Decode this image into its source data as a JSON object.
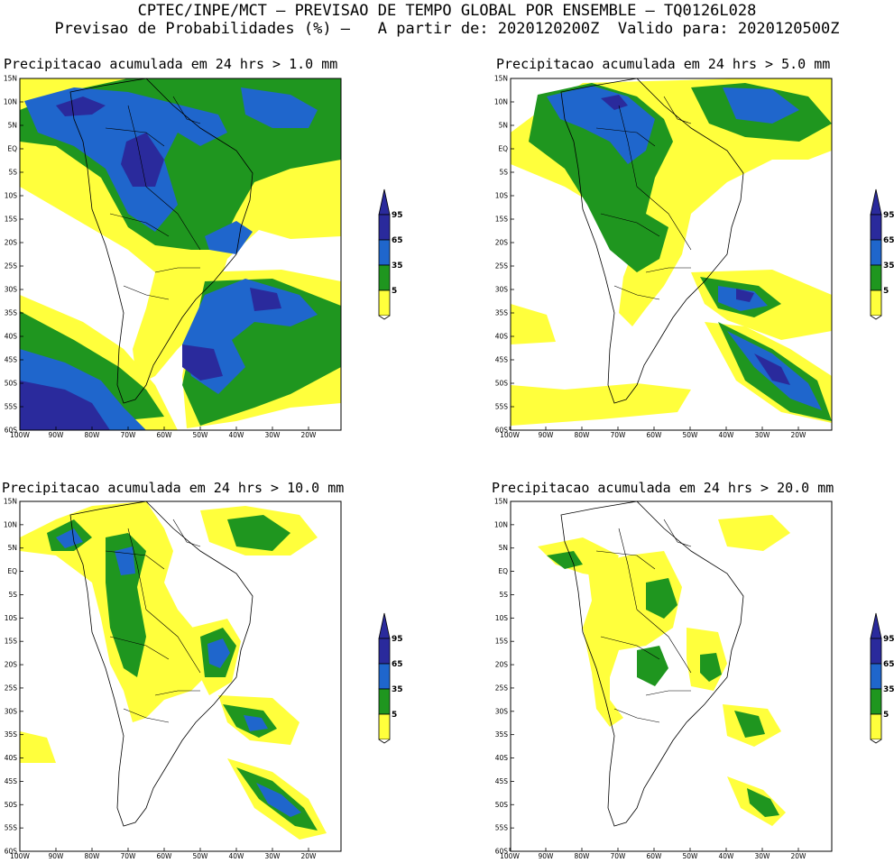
{
  "header": {
    "line1": "CPTEC/INPE/MCT – PREVISAO DE TEMPO GLOBAL POR ENSEMBLE – TQ0126L028",
    "line2": "Previsao de Probabilidades (%) –   A partir de: 2020120200Z  Valido para: 2020120500Z"
  },
  "panels": [
    {
      "title": "Precipitacao acumulada em 24 hrs > 1.0 mm",
      "threshold_mm": 1.0
    },
    {
      "title": "Precipitacao acumulada em 24 hrs > 5.0 mm",
      "threshold_mm": 5.0
    },
    {
      "title": "Precipitacao acumulada em 24 hrs > 10.0 mm",
      "threshold_mm": 10.0
    },
    {
      "title": "Precipitacao acumulada em 24 hrs > 20.0 mm",
      "threshold_mm": 20.0
    }
  ],
  "axes": {
    "lat_labels": [
      "15N",
      "10N",
      "5N",
      "EQ",
      "5S",
      "10S",
      "15S",
      "20S",
      "25S",
      "30S",
      "35S",
      "40S",
      "45S",
      "50S",
      "55S",
      "60S"
    ],
    "lon_labels": [
      "100W",
      "90W",
      "80W",
      "70W",
      "60W",
      "50W",
      "40W",
      "30W",
      "20W"
    ]
  },
  "colorbar": {
    "labels": [
      "95",
      "65",
      "35",
      "5"
    ],
    "colors": [
      "#2a2a9c",
      "#1f66cc",
      "#1f961f",
      "#ffff3c"
    ]
  }
}
